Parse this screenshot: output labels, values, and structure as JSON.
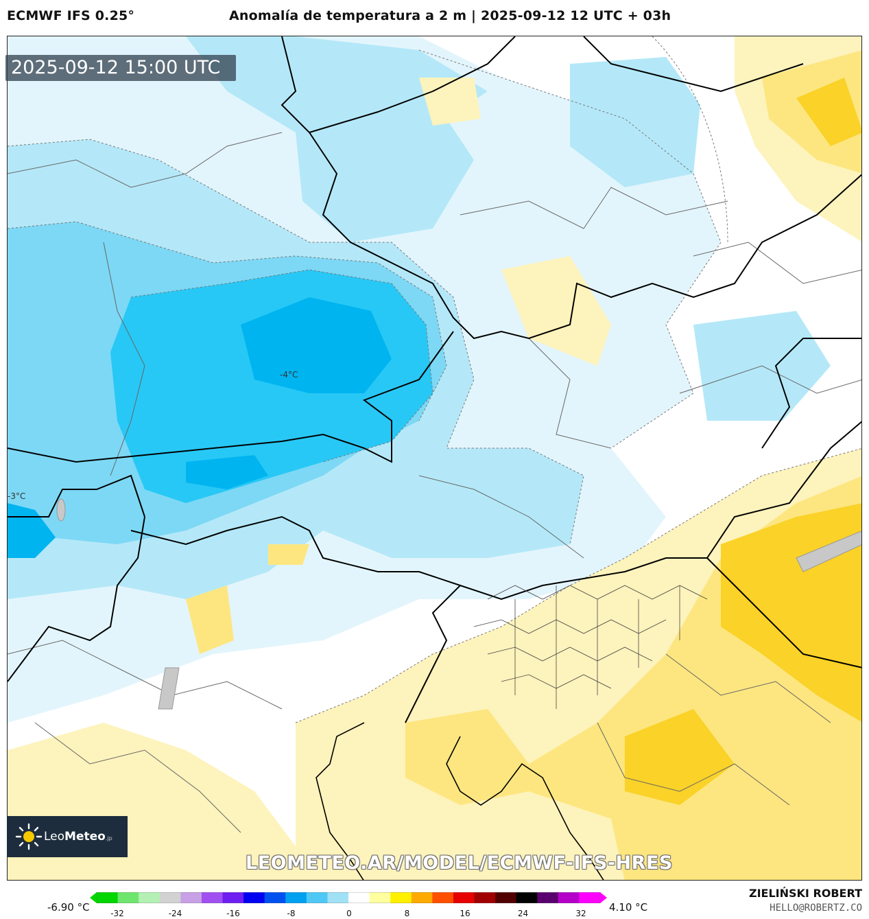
{
  "header": {
    "model": "ECMWF IFS 0.25°",
    "title": "Anomalía de temperatura a 2 m | 2025-09-12 12 UTC + 03h"
  },
  "map": {
    "valid_time": "2025-09-12 15:00 UTC",
    "labels": {
      "center_min": "-4°C",
      "west_min": "-3°C"
    },
    "watermark": "LEOMETEO.AR/MODEL/ECMWF-IFS-HRES",
    "colors": {
      "cold_light": "#e3f5fc",
      "cold_mid": "#b4e8f8",
      "cold_strong": "#7dd8f5",
      "cold_deep": "#27c8f5",
      "cold_core": "#00b4f0",
      "warm_light": "#fdf3bc",
      "warm_mid": "#fde680",
      "warm_strong": "#fad228",
      "border": "#000000",
      "admin": "#555555"
    }
  },
  "logo": {
    "brand_bold": "Leo",
    "brand_rest": "Meteo",
    "suffix": ".jp"
  },
  "legend": {
    "min_label": "-6.90 °C",
    "max_label": "4.10 °C",
    "ticks": [
      "-32",
      "-24",
      "-16",
      "-8",
      "0",
      "8",
      "16",
      "24",
      "32"
    ],
    "stops": [
      "#00d600",
      "#6ee66e",
      "#b4f0b4",
      "#d2d2d2",
      "#c8a0e6",
      "#a050f0",
      "#6e1ef0",
      "#0000f0",
      "#0050f0",
      "#00a0f0",
      "#50c8f5",
      "#a0e1f5",
      "#ffffff",
      "#ffffa0",
      "#fff000",
      "#ffaa00",
      "#ff5000",
      "#e60000",
      "#a00000",
      "#500000",
      "#000000",
      "#5a006e",
      "#b400c8",
      "#ff00ff"
    ]
  },
  "credits": {
    "author": "ZIELIŃSKI ROBERT",
    "email": "HELLO@ROBERTZ.CO"
  }
}
